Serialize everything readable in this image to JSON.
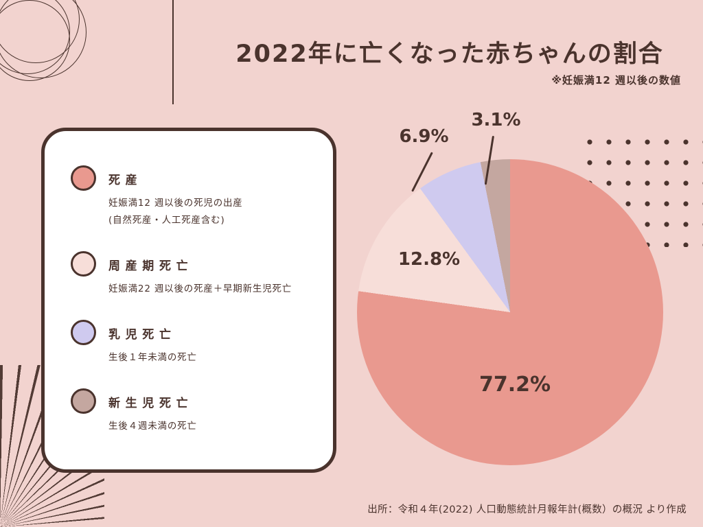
{
  "page": {
    "background": "#f2d3cf",
    "accent": "#4a332d",
    "card_background": "#ffffff"
  },
  "header": {
    "title": "2022年に亡くなった赤ちゃんの割合",
    "note": "※妊娠満12 週以後の数値"
  },
  "legend": {
    "items": [
      {
        "label": "死産",
        "desc": "妊娠満12 週以後の死児の出産",
        "desc2": "(自然死産・人工死産含む)",
        "color": "#e9998f"
      },
      {
        "label": "周産期死亡",
        "desc": "妊娠満22 週以後の死産＋早期新生児死亡",
        "desc2": "",
        "color": "#f7ded9"
      },
      {
        "label": "乳児死亡",
        "desc": "生後１年未満の死亡",
        "desc2": "",
        "color": "#cfcaef"
      },
      {
        "label": "新生児死亡",
        "desc": "生後４週未満の死亡",
        "desc2": "",
        "color": "#c4a7a0"
      }
    ]
  },
  "chart_data": {
    "type": "pie",
    "title": "2022年に亡くなった赤ちゃんの割合",
    "note": "※妊娠満12 週以後の数値",
    "start_angle_deg": 0,
    "direction": "clockwise",
    "legend_position": "left-card",
    "slices": [
      {
        "label": "死産",
        "value": 77.2,
        "pct_label": "77.2%",
        "color": "#e9998f"
      },
      {
        "label": "周産期死亡",
        "value": 12.8,
        "pct_label": "12.8%",
        "color": "#f7ded9"
      },
      {
        "label": "乳児死亡",
        "value": 6.9,
        "pct_label": "6.9%",
        "color": "#cfcaef"
      },
      {
        "label": "新生児死亡",
        "value": 3.1,
        "pct_label": "3.1%",
        "color": "#c4a7a0"
      }
    ]
  },
  "footer": {
    "source": "出所：令和４年(2022) 人口動態統計月報年計(概数）の概況 より作成"
  }
}
